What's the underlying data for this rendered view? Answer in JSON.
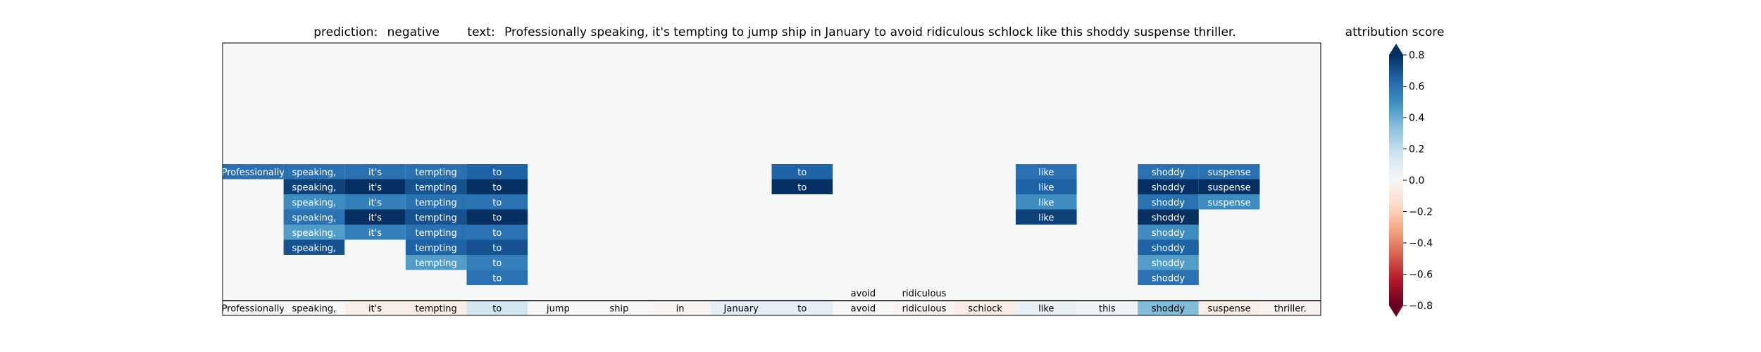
{
  "chart_data": {
    "type": "heatmap",
    "title": {
      "prediction_label": "prediction:",
      "prediction_value": "negative",
      "text_label": "text:",
      "text_value": "Professionally speaking, it's tempting to jump ship in January to avoid ridiculous schlock like this shoddy suspense thriller."
    },
    "tokens": [
      "Professionally",
      "speaking,",
      "it's",
      "tempting",
      "to",
      "jump",
      "ship",
      "in",
      "January",
      "to",
      "avoid",
      "ridiculous",
      "schlock",
      "like",
      "this",
      "shoddy",
      "suspense",
      "thriller."
    ],
    "bottom_row_scores": [
      0.0,
      0.0,
      -0.05,
      -0.06,
      0.15,
      0.0,
      0.0,
      -0.02,
      0.08,
      0.08,
      0.0,
      -0.02,
      -0.06,
      0.06,
      0.04,
      0.35,
      -0.05,
      -0.03
    ],
    "rows": [
      {
        "cells": [
          {
            "token": 0,
            "score": 0.6
          },
          {
            "token": 1,
            "score": 0.6
          },
          {
            "token": 2,
            "score": 0.6
          },
          {
            "token": 3,
            "score": 0.6
          },
          {
            "token": 4,
            "score": 0.65
          },
          {
            "token": 9,
            "score": 0.65
          },
          {
            "token": 13,
            "score": 0.6
          },
          {
            "token": 15,
            "score": 0.6
          },
          {
            "token": 16,
            "score": 0.6
          }
        ]
      },
      {
        "cells": [
          {
            "token": 1,
            "score": 0.75
          },
          {
            "token": 2,
            "score": 0.8
          },
          {
            "token": 3,
            "score": 0.7
          },
          {
            "token": 4,
            "score": 0.8
          },
          {
            "token": 9,
            "score": 0.8
          },
          {
            "token": 13,
            "score": 0.65
          },
          {
            "token": 15,
            "score": 0.8
          },
          {
            "token": 16,
            "score": 0.8
          }
        ]
      },
      {
        "cells": [
          {
            "token": 1,
            "score": 0.5
          },
          {
            "token": 2,
            "score": 0.55
          },
          {
            "token": 3,
            "score": 0.6
          },
          {
            "token": 4,
            "score": 0.6
          },
          {
            "token": 13,
            "score": 0.5
          },
          {
            "token": 15,
            "score": 0.6
          },
          {
            "token": 16,
            "score": 0.5
          }
        ]
      },
      {
        "cells": [
          {
            "token": 1,
            "score": 0.6
          },
          {
            "token": 2,
            "score": 0.8
          },
          {
            "token": 3,
            "score": 0.7
          },
          {
            "token": 4,
            "score": 0.8
          },
          {
            "token": 13,
            "score": 0.75
          },
          {
            "token": 15,
            "score": 0.8
          }
        ]
      },
      {
        "cells": [
          {
            "token": 1,
            "score": 0.45
          },
          {
            "token": 2,
            "score": 0.55
          },
          {
            "token": 3,
            "score": 0.6
          },
          {
            "token": 4,
            "score": 0.6
          },
          {
            "token": 15,
            "score": 0.5
          }
        ]
      },
      {
        "cells": [
          {
            "token": 1,
            "score": 0.7
          },
          {
            "token": 3,
            "score": 0.65
          },
          {
            "token": 4,
            "score": 0.7
          },
          {
            "token": 15,
            "score": 0.65
          }
        ]
      },
      {
        "cells": [
          {
            "token": 3,
            "score": 0.45
          },
          {
            "token": 4,
            "score": 0.55
          },
          {
            "token": 15,
            "score": 0.45
          }
        ]
      },
      {
        "cells": [
          {
            "token": 4,
            "score": 0.6
          },
          {
            "token": 15,
            "score": 0.6
          }
        ]
      },
      {
        "cells": [
          {
            "token": 10,
            "score": 0.0
          },
          {
            "token": 11,
            "score": 0.0
          }
        ]
      }
    ],
    "colorbar": {
      "label": "attribution score",
      "range": [
        -0.8,
        0.8
      ],
      "ticks": [
        0.8,
        0.6,
        0.4,
        0.2,
        0.0,
        -0.2,
        -0.4,
        -0.6,
        -0.8
      ],
      "tick_labels": [
        "0.8",
        "0.6",
        "0.4",
        "0.2",
        "0.0",
        "−0.2",
        "−0.4",
        "−0.6",
        "−0.8"
      ]
    },
    "colors": {
      "background": "#f6f7f7"
    }
  }
}
